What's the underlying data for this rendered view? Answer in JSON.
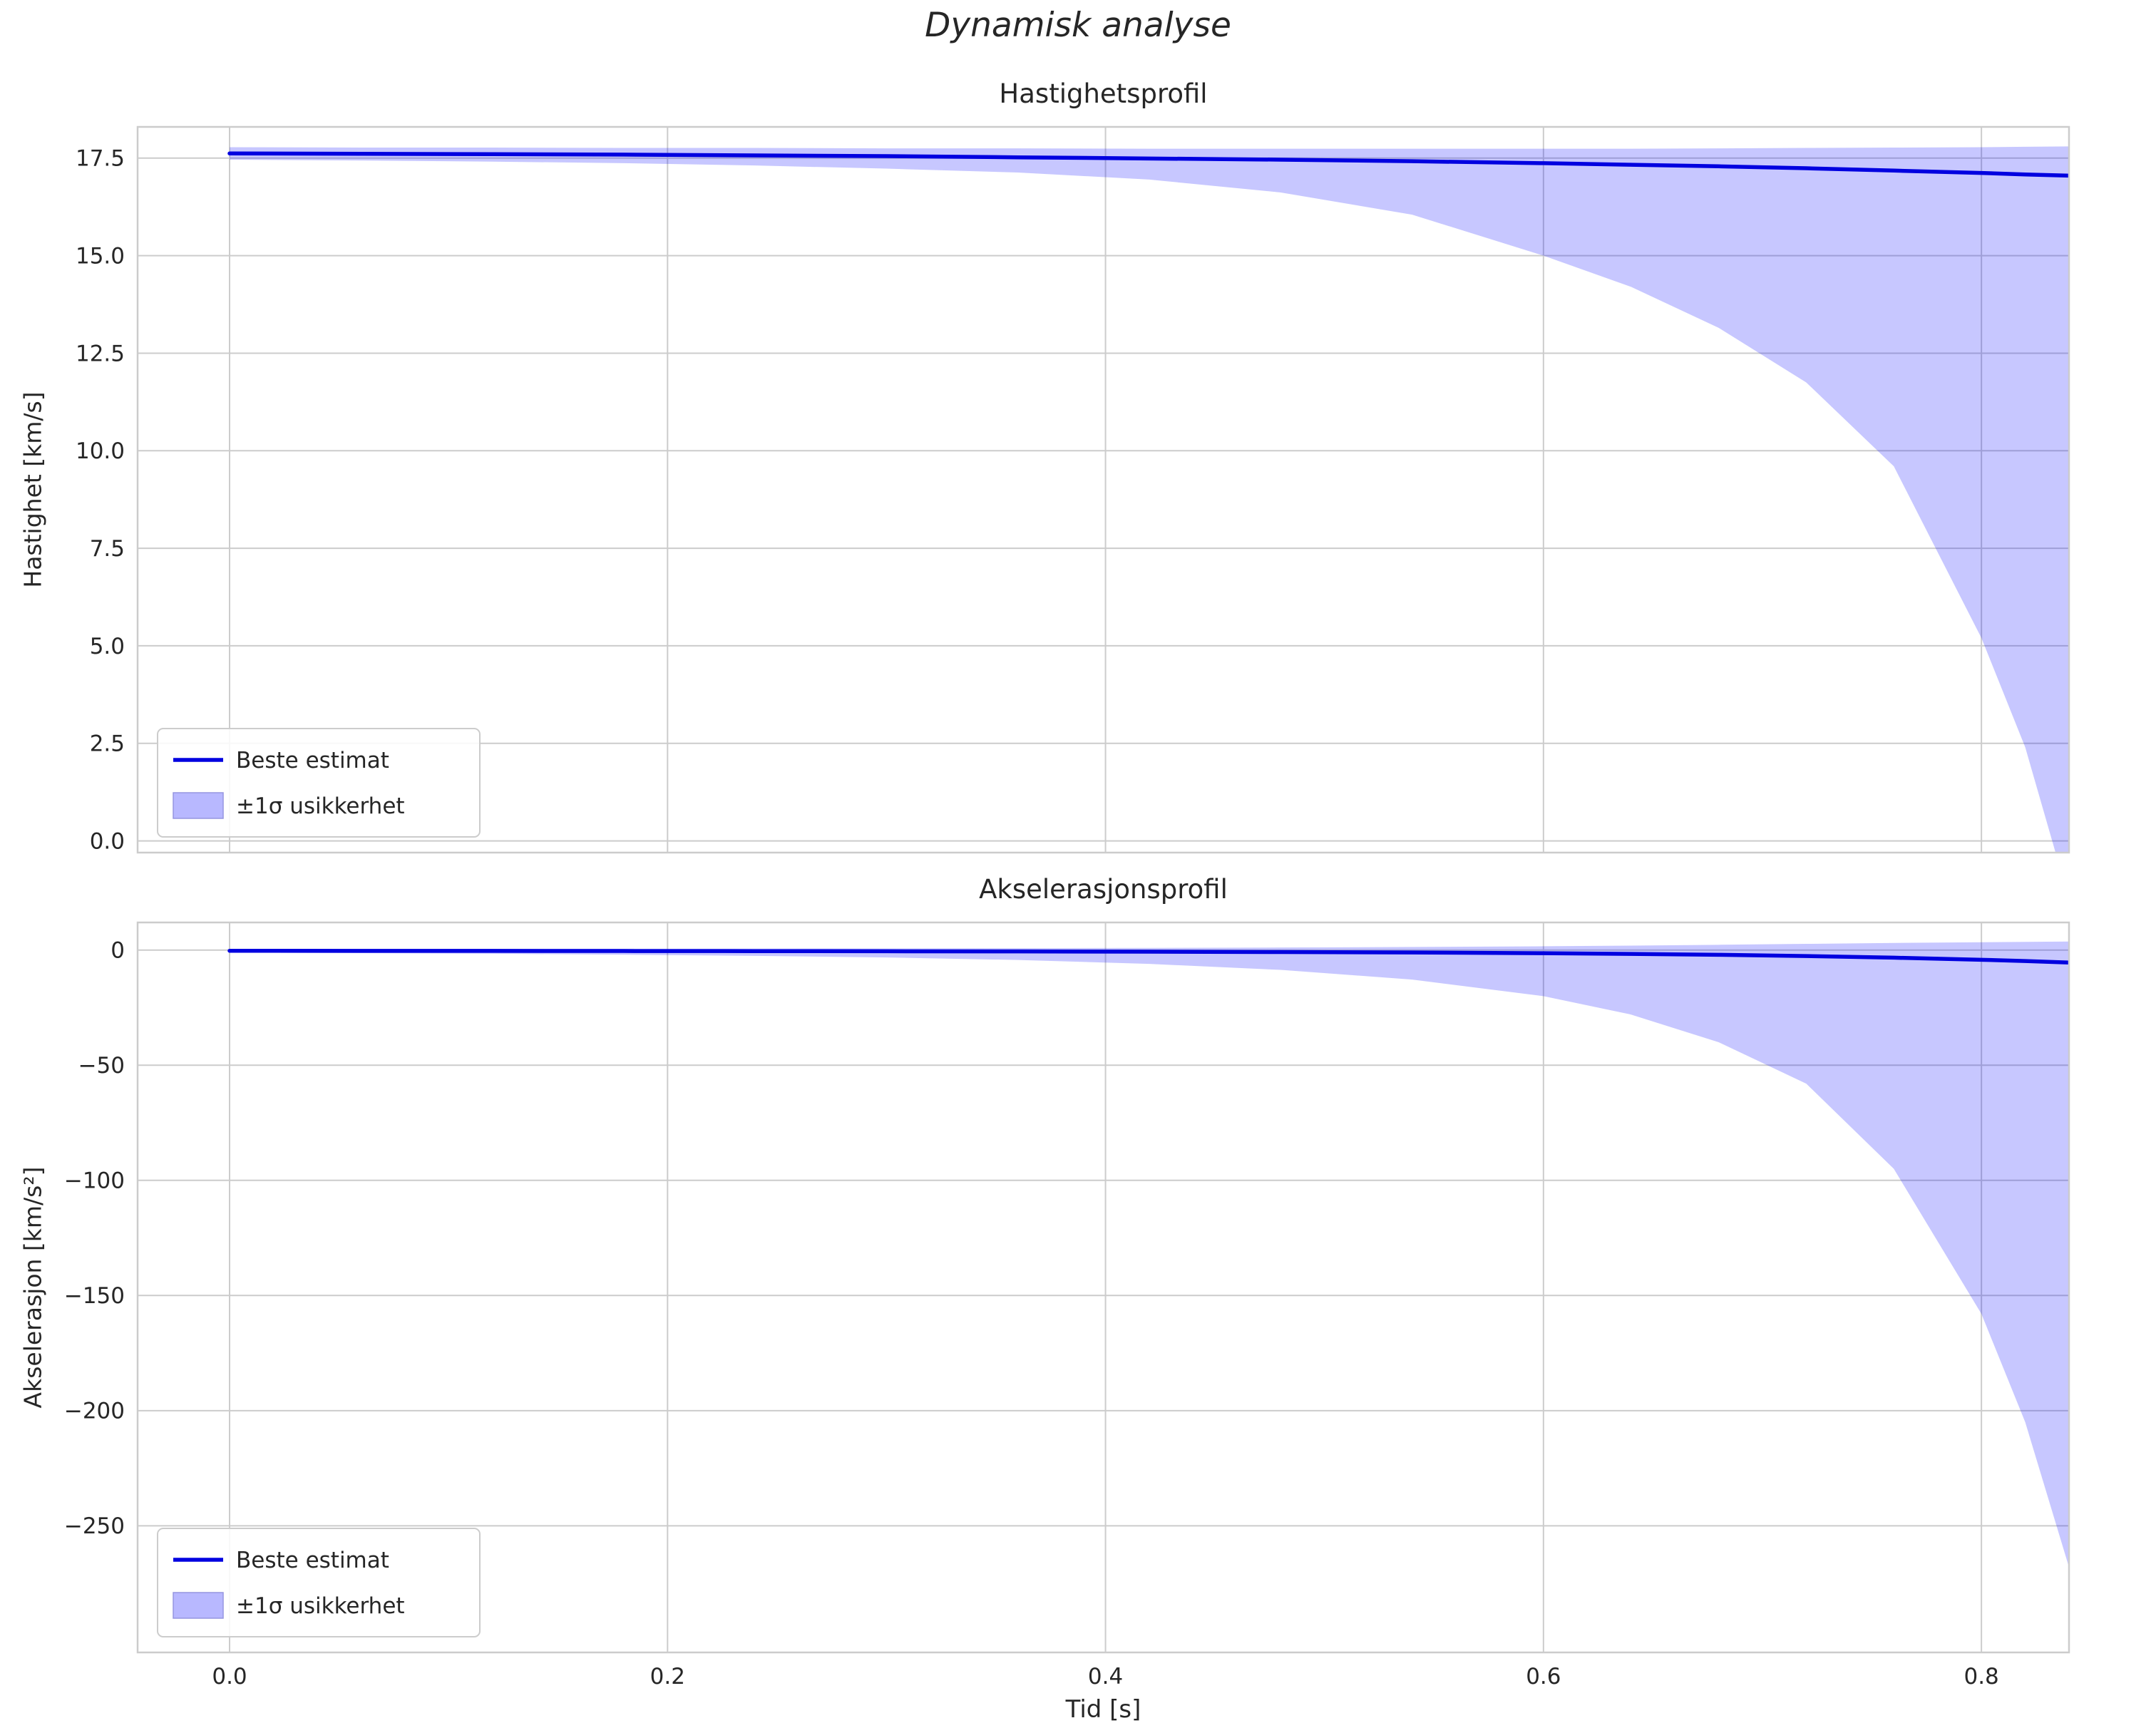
{
  "figure": {
    "suptitle": "Dynamisk analyse",
    "xlabel": "Tid [s]"
  },
  "colors": {
    "line": "#0000e0",
    "band": "#0000ff",
    "grid": "#cccccc",
    "axes_border": "#cccccc",
    "text": "#262626"
  },
  "chart_data": [
    {
      "type": "area",
      "name": "velocity-profile",
      "title": "Hastighetsprofil",
      "ylabel": "Hastighet [km/s]",
      "legend": [
        "Beste estimat",
        "±1σ usikkerhet"
      ],
      "legend_position": "lower-left",
      "grid": true,
      "xlim": [
        -0.042,
        0.84
      ],
      "ylim": [
        -0.3,
        18.3
      ],
      "xticks": [
        0.0,
        0.2,
        0.4,
        0.6,
        0.8
      ],
      "xtick_labels": [
        "0.0",
        "0.2",
        "0.4",
        "0.6",
        "0.8"
      ],
      "show_xtick_labels": false,
      "yticks": [
        0.0,
        2.5,
        5.0,
        7.5,
        10.0,
        12.5,
        15.0,
        17.5
      ],
      "ytick_labels": [
        "0.0",
        "2.5",
        "5.0",
        "7.5",
        "10.0",
        "12.5",
        "15.0",
        "17.5"
      ],
      "x": [
        0,
        0.06,
        0.12,
        0.18,
        0.24,
        0.3,
        0.36,
        0.42,
        0.48,
        0.54,
        0.6,
        0.64,
        0.68,
        0.72,
        0.76,
        0.8,
        0.82,
        0.84
      ],
      "best": [
        17.62,
        17.61,
        17.6,
        17.59,
        17.57,
        17.55,
        17.52,
        17.49,
        17.46,
        17.42,
        17.37,
        17.33,
        17.29,
        17.24,
        17.18,
        17.12,
        17.08,
        17.05
      ],
      "upper": [
        17.78,
        17.77,
        17.77,
        17.76,
        17.76,
        17.75,
        17.75,
        17.74,
        17.74,
        17.74,
        17.74,
        17.74,
        17.75,
        17.76,
        17.77,
        17.78,
        17.79,
        17.8
      ],
      "lower": [
        17.46,
        17.44,
        17.41,
        17.37,
        17.31,
        17.23,
        17.13,
        16.95,
        16.62,
        16.05,
        15.0,
        14.2,
        13.15,
        11.75,
        9.6,
        5.2,
        2.4,
        -1.5
      ]
    },
    {
      "type": "area",
      "name": "acceleration-profile",
      "title": "Akselerasjonsprofil",
      "ylabel": "Akselerasjon [km/s²]",
      "legend": [
        "Beste estimat",
        "±1σ usikkerhet"
      ],
      "legend_position": "lower-left",
      "grid": true,
      "xlim": [
        -0.042,
        0.84
      ],
      "ylim": [
        -305,
        12
      ],
      "xticks": [
        0.0,
        0.2,
        0.4,
        0.6,
        0.8
      ],
      "xtick_labels": [
        "0.0",
        "0.2",
        "0.4",
        "0.6",
        "0.8"
      ],
      "show_xtick_labels": true,
      "yticks": [
        0,
        -50,
        -100,
        -150,
        -200,
        -250
      ],
      "ytick_labels": [
        "0",
        "−50",
        "−100",
        "−150",
        "−200",
        "−250"
      ],
      "x": [
        0,
        0.06,
        0.12,
        0.18,
        0.24,
        0.3,
        0.36,
        0.42,
        0.48,
        0.54,
        0.6,
        0.64,
        0.68,
        0.72,
        0.76,
        0.8,
        0.82,
        0.84
      ],
      "best": [
        -0.3,
        -0.33,
        -0.36,
        -0.4,
        -0.45,
        -0.51,
        -0.59,
        -0.7,
        -0.85,
        -1.05,
        -1.35,
        -1.65,
        -2.05,
        -2.6,
        -3.3,
        -4.2,
        -4.75,
        -5.4
      ],
      "upper": [
        0.5,
        0.52,
        0.55,
        0.6,
        0.65,
        0.72,
        0.82,
        0.95,
        1.12,
        1.35,
        1.65,
        1.95,
        2.3,
        2.7,
        3.1,
        3.4,
        3.55,
        3.7
      ],
      "lower": [
        -1.1,
        -1.3,
        -1.6,
        -2.0,
        -2.5,
        -3.2,
        -4.3,
        -6.0,
        -8.6,
        -12.8,
        -20.0,
        -28.0,
        -40.0,
        -58.0,
        -95.0,
        -158.0,
        -205.0,
        -268.0
      ]
    }
  ]
}
